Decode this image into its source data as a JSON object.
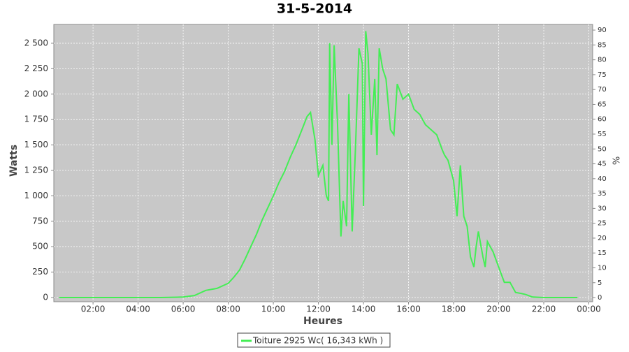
{
  "chart_data": {
    "type": "line",
    "title": "31-5-2014",
    "x_label": "Heures",
    "y_label": "Watts",
    "y2_label": "%",
    "x": [
      0.5,
      5.0,
      6.0,
      6.5,
      7.0,
      7.5,
      8.0,
      8.25,
      8.5,
      8.75,
      9.0,
      9.25,
      9.5,
      9.75,
      10.0,
      10.25,
      10.5,
      10.75,
      11.0,
      11.25,
      11.5,
      11.65,
      11.85,
      12.0,
      12.2,
      12.35,
      12.45,
      12.5,
      12.6,
      12.7,
      12.85,
      13.0,
      13.1,
      13.25,
      13.35,
      13.5,
      13.65,
      13.8,
      13.95,
      14.0,
      14.1,
      14.2,
      14.35,
      14.5,
      14.6,
      14.7,
      14.85,
      15.0,
      15.2,
      15.35,
      15.5,
      15.75,
      16.0,
      16.25,
      16.5,
      16.75,
      17.0,
      17.25,
      17.5,
      17.6,
      17.75,
      18.0,
      18.15,
      18.3,
      18.45,
      18.6,
      18.75,
      18.9,
      19.0,
      19.1,
      19.3,
      19.4,
      19.5,
      19.75,
      20.0,
      20.25,
      20.5,
      20.75,
      21.0,
      21.2,
      21.5,
      22.0,
      23.5
    ],
    "series": [
      {
        "name": "Toiture 2925 Wc( 16,343 kWh )",
        "color": "#44ee55",
        "values": [
          0,
          0,
          5,
          20,
          70,
          90,
          140,
          200,
          270,
          380,
          500,
          620,
          760,
          880,
          1000,
          1130,
          1240,
          1380,
          1500,
          1640,
          1780,
          1820,
          1550,
          1200,
          1300,
          1000,
          950,
          2500,
          1500,
          2480,
          1700,
          600,
          950,
          700,
          2000,
          650,
          1500,
          2450,
          2300,
          900,
          2620,
          2400,
          1600,
          2150,
          1400,
          2450,
          2250,
          2150,
          1650,
          1600,
          2100,
          1950,
          2000,
          1850,
          1800,
          1700,
          1650,
          1600,
          1450,
          1400,
          1350,
          1150,
          800,
          1300,
          800,
          700,
          400,
          300,
          500,
          650,
          400,
          300,
          550,
          450,
          300,
          150,
          150,
          50,
          40,
          30,
          5,
          0,
          0
        ]
      }
    ],
    "xlim": [
      0.26,
      24.17
    ],
    "xticks": [
      {
        "value": 2,
        "label": "02:00"
      },
      {
        "value": 4,
        "label": "04:00"
      },
      {
        "value": 6,
        "label": "06:00"
      },
      {
        "value": 8,
        "label": "08:00"
      },
      {
        "value": 10,
        "label": "10:00"
      },
      {
        "value": 12,
        "label": "12:00"
      },
      {
        "value": 14,
        "label": "14:00"
      },
      {
        "value": 16,
        "label": "16:00"
      },
      {
        "value": 18,
        "label": "18:00"
      },
      {
        "value": 20,
        "label": "20:00"
      },
      {
        "value": 22,
        "label": "22:00"
      },
      {
        "value": 24,
        "label": "00:00"
      }
    ],
    "ylim": [
      -41,
      2685
    ],
    "yticks": [
      0,
      250,
      500,
      750,
      {
        "value": 1000,
        "label": "1 000"
      },
      {
        "value": 1250,
        "label": "1 250"
      },
      {
        "value": 1500,
        "label": "1 500"
      },
      {
        "value": 1750,
        "label": "1 750"
      },
      {
        "value": 2000,
        "label": "2 000"
      },
      {
        "value": 2250,
        "label": "2 250"
      },
      {
        "value": 2500,
        "label": "2 500"
      }
    ],
    "y2lim": [
      -1.4,
      91.9
    ],
    "y2ticks": [
      0,
      5,
      10,
      15,
      20,
      25,
      30,
      35,
      40,
      45,
      50,
      55,
      60,
      65,
      70,
      75,
      80,
      85,
      90
    ],
    "grid": true,
    "legend": "bottom"
  }
}
